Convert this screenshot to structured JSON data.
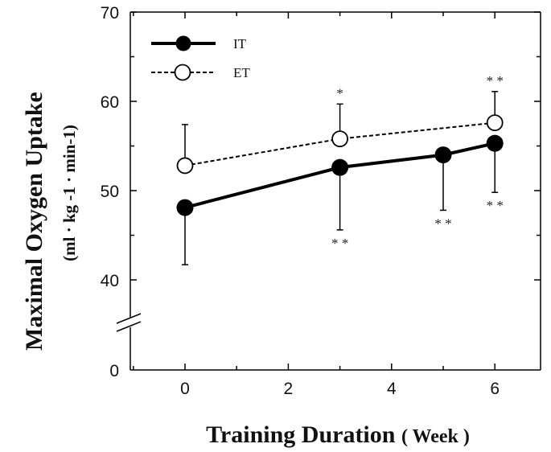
{
  "chart_data": {
    "type": "line",
    "xlabel_main": "Training Duration",
    "xlabel_unit": "( Week )",
    "ylabel_main": "Maximal Oxygen Uptake",
    "ylabel_unit": "(ml · kg -1 · min-1)",
    "xlim": [
      -1,
      7
    ],
    "ylim": [
      0,
      70
    ],
    "y_axis_break": [
      0,
      35
    ],
    "x_ticks": [
      "0",
      "2",
      "4",
      "6"
    ],
    "y_ticks": [
      "0",
      "40",
      "50",
      "60",
      "70"
    ],
    "grid": false,
    "legend_position": "top-left",
    "series": [
      {
        "name": "IT",
        "marker": "filled-circle",
        "line": "solid",
        "x": [
          0,
          3,
          5,
          6
        ],
        "y": [
          48.1,
          52.6,
          54.0,
          55.3
        ],
        "error_lower": [
          41.7,
          45.6,
          47.8,
          49.8
        ],
        "annotations": [
          "",
          "**",
          "**",
          "**"
        ]
      },
      {
        "name": "ET",
        "marker": "open-circle",
        "line": "dashed",
        "x": [
          0,
          3,
          6
        ],
        "y": [
          52.8,
          55.8,
          57.6
        ],
        "error_upper": [
          57.4,
          59.7,
          61.1
        ],
        "annotations": [
          "",
          "*",
          "**"
        ]
      }
    ]
  }
}
